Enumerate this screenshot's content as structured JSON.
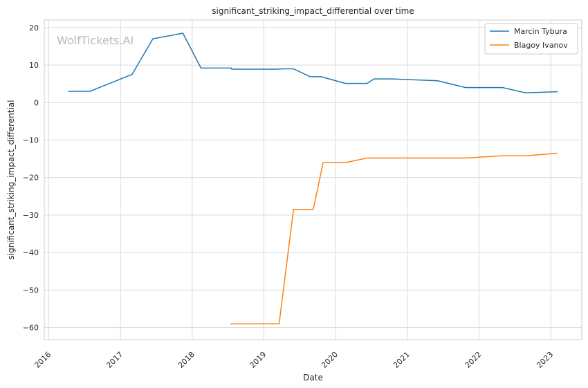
{
  "chart_data": {
    "type": "line",
    "title": "significant_striking_impact_differential over time",
    "xlabel": "Date",
    "ylabel": "significant_striking_impact_differential",
    "watermark": "WolfTickets.AI",
    "x_ticks": [
      "2016",
      "2017",
      "2018",
      "2019",
      "2020",
      "2021",
      "2022",
      "2023"
    ],
    "y_ticks": [
      20,
      10,
      0,
      -10,
      -20,
      -30,
      -40,
      -50,
      -60
    ],
    "xlim": [
      "2015-12-10",
      "2023-06-08"
    ],
    "ylim": [
      -63.2,
      22
    ],
    "grid": true,
    "legend_position": "top-right",
    "series": [
      {
        "name": "Marcin Tybura",
        "color": "#1f77b4",
        "points": [
          [
            "2016-04-10",
            3.0
          ],
          [
            "2016-07-30",
            3.0
          ],
          [
            "2017-03-01",
            7.5
          ],
          [
            "2017-06-15",
            17.0
          ],
          [
            "2017-11-15",
            18.5
          ],
          [
            "2018-02-15",
            9.2
          ],
          [
            "2018-07-20",
            9.2
          ],
          [
            "2018-07-21",
            8.9
          ],
          [
            "2019-03-05",
            8.9
          ],
          [
            "2019-04-15",
            9.0
          ],
          [
            "2019-06-01",
            9.0
          ],
          [
            "2019-08-25",
            6.9
          ],
          [
            "2019-10-20",
            6.9
          ],
          [
            "2020-02-20",
            5.1
          ],
          [
            "2020-06-10",
            5.1
          ],
          [
            "2020-07-15",
            6.3
          ],
          [
            "2020-10-15",
            6.3
          ],
          [
            "2021-06-05",
            5.8
          ],
          [
            "2021-10-25",
            4.0
          ],
          [
            "2022-05-01",
            4.0
          ],
          [
            "2022-08-25",
            2.6
          ],
          [
            "2023-02-05",
            2.9
          ]
        ]
      },
      {
        "name": "Blagoy Ivanov",
        "color": "#ff7f0e",
        "points": [
          [
            "2018-07-15",
            -59.0
          ],
          [
            "2019-03-20",
            -59.0
          ],
          [
            "2019-06-01",
            -28.5
          ],
          [
            "2019-09-10",
            -28.5
          ],
          [
            "2019-10-30",
            -16.0
          ],
          [
            "2020-02-20",
            -16.0
          ],
          [
            "2020-06-10",
            -14.8
          ],
          [
            "2021-10-25",
            -14.8
          ],
          [
            "2022-04-25",
            -14.2
          ],
          [
            "2022-08-25",
            -14.2
          ],
          [
            "2023-02-05",
            -13.5
          ]
        ]
      }
    ]
  }
}
